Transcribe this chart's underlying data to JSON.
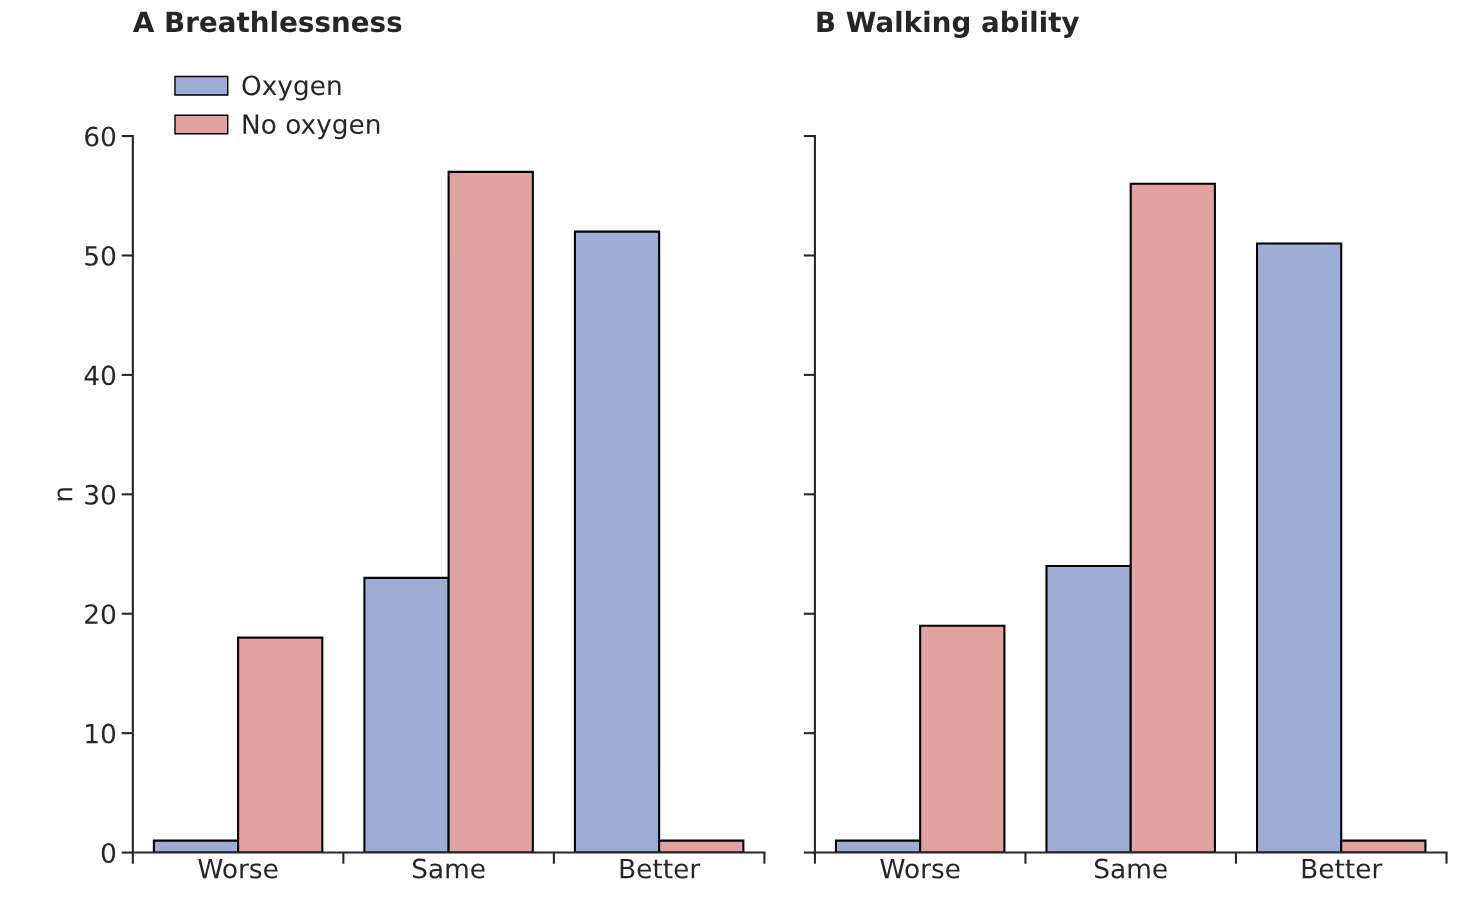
{
  "chart_data": [
    {
      "type": "bar",
      "title": "A Breathlessness",
      "ylabel": "n",
      "categories": [
        "Worse",
        "Same",
        "Better"
      ],
      "series": [
        {
          "name": "Oxygen",
          "color": "#9dadd6",
          "values": [
            1,
            23,
            52
          ]
        },
        {
          "name": "No oxygen",
          "color": "#e2a3a0",
          "values": [
            18,
            57,
            1
          ]
        }
      ],
      "ylim": [
        0,
        60
      ],
      "yticks": [
        0,
        10,
        20,
        30,
        40,
        50,
        60
      ],
      "grid": false,
      "legend": "top left"
    },
    {
      "type": "bar",
      "title": "B Walking ability",
      "categories": [
        "Worse",
        "Same",
        "Better"
      ],
      "series": [
        {
          "color": "#9dadd6",
          "values": [
            1,
            24,
            51
          ]
        },
        {
          "color": "#e2a3a0",
          "values": [
            19,
            56,
            1
          ]
        }
      ],
      "ylim": [
        0,
        60
      ],
      "yticks": [
        0,
        10,
        20,
        30,
        40,
        50,
        60
      ],
      "grid": false,
      "tick_labels": "x"
    }
  ]
}
